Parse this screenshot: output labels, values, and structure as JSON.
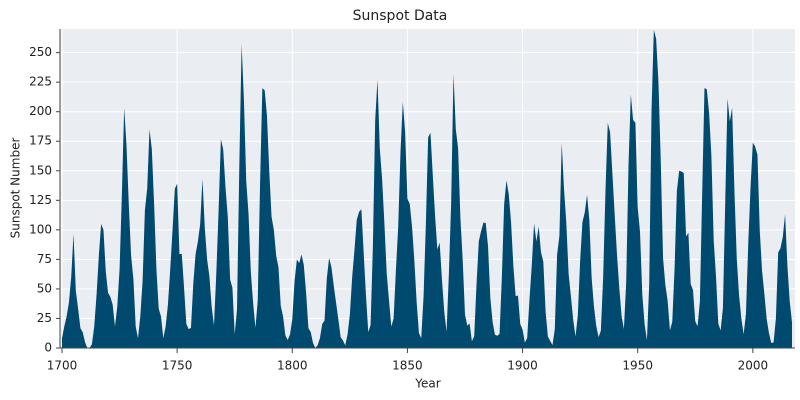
{
  "chart_data": {
    "type": "area",
    "title": "Sunspot Data",
    "x_label": "Year",
    "y_label": "Sunspot Number",
    "color": "#004a6f",
    "grid": true,
    "xlim": [
      1700,
      2017
    ],
    "ylim": [
      0,
      270
    ],
    "xticks": [
      1700,
      1750,
      1800,
      1850,
      1900,
      1950,
      2000
    ],
    "yticks": [
      0,
      25,
      50,
      75,
      100,
      125,
      150,
      175,
      200,
      225,
      250
    ],
    "x": [
      1700,
      1701,
      1702,
      1703,
      1704,
      1705,
      1706,
      1707,
      1708,
      1709,
      1710,
      1711,
      1712,
      1713,
      1714,
      1715,
      1716,
      1717,
      1718,
      1719,
      1720,
      1721,
      1722,
      1723,
      1724,
      1725,
      1726,
      1727,
      1728,
      1729,
      1730,
      1731,
      1732,
      1733,
      1734,
      1735,
      1736,
      1737,
      1738,
      1739,
      1740,
      1741,
      1742,
      1743,
      1744,
      1745,
      1746,
      1747,
      1748,
      1749,
      1750,
      1751,
      1752,
      1753,
      1754,
      1755,
      1756,
      1757,
      1758,
      1759,
      1760,
      1761,
      1762,
      1763,
      1764,
      1765,
      1766,
      1767,
      1768,
      1769,
      1770,
      1771,
      1772,
      1773,
      1774,
      1775,
      1776,
      1777,
      1778,
      1779,
      1780,
      1781,
      1782,
      1783,
      1784,
      1785,
      1786,
      1787,
      1788,
      1789,
      1790,
      1791,
      1792,
      1793,
      1794,
      1795,
      1796,
      1797,
      1798,
      1799,
      1800,
      1801,
      1802,
      1803,
      1804,
      1805,
      1806,
      1807,
      1808,
      1809,
      1810,
      1811,
      1812,
      1813,
      1814,
      1815,
      1816,
      1817,
      1818,
      1819,
      1820,
      1821,
      1822,
      1823,
      1824,
      1825,
      1826,
      1827,
      1828,
      1829,
      1830,
      1831,
      1832,
      1833,
      1834,
      1835,
      1836,
      1837,
      1838,
      1839,
      1840,
      1841,
      1842,
      1843,
      1844,
      1845,
      1846,
      1847,
      1848,
      1849,
      1850,
      1851,
      1852,
      1853,
      1854,
      1855,
      1856,
      1857,
      1858,
      1859,
      1860,
      1861,
      1862,
      1863,
      1864,
      1865,
      1866,
      1867,
      1868,
      1869,
      1870,
      1871,
      1872,
      1873,
      1874,
      1875,
      1876,
      1877,
      1878,
      1879,
      1880,
      1881,
      1882,
      1883,
      1884,
      1885,
      1886,
      1887,
      1888,
      1889,
      1890,
      1891,
      1892,
      1893,
      1894,
      1895,
      1896,
      1897,
      1898,
      1899,
      1900,
      1901,
      1902,
      1903,
      1904,
      1905,
      1906,
      1907,
      1908,
      1909,
      1910,
      1911,
      1912,
      1913,
      1914,
      1915,
      1916,
      1917,
      1918,
      1919,
      1920,
      1921,
      1922,
      1923,
      1924,
      1925,
      1926,
      1927,
      1928,
      1929,
      1930,
      1931,
      1932,
      1933,
      1934,
      1935,
      1936,
      1937,
      1938,
      1939,
      1940,
      1941,
      1942,
      1943,
      1944,
      1945,
      1946,
      1947,
      1948,
      1949,
      1950,
      1951,
      1952,
      1953,
      1954,
      1955,
      1956,
      1957,
      1958,
      1959,
      1960,
      1961,
      1962,
      1963,
      1964,
      1965,
      1966,
      1967,
      1968,
      1969,
      1970,
      1971,
      1972,
      1973,
      1974,
      1975,
      1976,
      1977,
      1978,
      1979,
      1980,
      1981,
      1982,
      1983,
      1984,
      1985,
      1986,
      1987,
      1988,
      1989,
      1990,
      1991,
      1992,
      1993,
      1994,
      1995,
      1996,
      1997,
      1998,
      1999,
      2000,
      2001,
      2002,
      2003,
      2004,
      2005,
      2006,
      2007,
      2008,
      2009,
      2010,
      2011,
      2012,
      2013,
      2014,
      2015,
      2016,
      2017
    ],
    "values": [
      8.3,
      18.3,
      26.7,
      38.3,
      60.0,
      96.7,
      48.3,
      33.3,
      16.7,
      13.3,
      5.0,
      0.0,
      0.0,
      3.3,
      18.3,
      45.0,
      78.3,
      105.0,
      100.0,
      65.0,
      46.7,
      43.3,
      36.7,
      18.3,
      35.0,
      66.7,
      130.0,
      203.3,
      171.7,
      121.7,
      78.3,
      58.3,
      18.3,
      8.3,
      26.7,
      56.7,
      116.7,
      135.0,
      185.0,
      168.3,
      121.7,
      66.7,
      33.3,
      26.7,
      8.3,
      18.3,
      36.7,
      66.7,
      100.0,
      134.8,
      139.0,
      79.5,
      79.7,
      51.2,
      20.3,
      16.0,
      17.0,
      54.0,
      79.3,
      90.0,
      104.8,
      143.2,
      102.0,
      75.2,
      60.7,
      34.8,
      19.0,
      63.0,
      116.3,
      176.8,
      168.0,
      136.0,
      110.8,
      58.0,
      51.0,
      11.7,
      33.0,
      154.2,
      257.3,
      209.8,
      141.3,
      113.5,
      64.2,
      38.0,
      17.0,
      40.2,
      138.2,
      220.0,
      218.2,
      196.8,
      149.8,
      111.0,
      100.0,
      78.2,
      68.3,
      35.5,
      26.7,
      10.7,
      6.8,
      11.3,
      24.2,
      56.7,
      75.0,
      71.8,
      79.2,
      70.3,
      46.8,
      16.8,
      13.5,
      4.2,
      0.0,
      2.3,
      8.3,
      20.3,
      23.2,
      59.0,
      76.3,
      68.3,
      52.9,
      38.5,
      24.2,
      9.2,
      6.3,
      2.2,
      11.4,
      28.2,
      59.9,
      83.0,
      108.5,
      115.2,
      117.4,
      80.8,
      44.3,
      13.4,
      19.5,
      85.8,
      192.7,
      227.3,
      168.7,
      143.0,
      105.5,
      63.3,
      40.3,
      18.1,
      25.1,
      65.8,
      102.7,
      166.3,
      208.3,
      182.5,
      126.3,
      122.0,
      102.7,
      74.1,
      39.0,
      12.7,
      8.2,
      43.4,
      104.4,
      178.3,
      182.2,
      146.6,
      112.1,
      83.5,
      89.2,
      57.8,
      30.7,
      13.9,
      62.8,
      123.6,
      232.0,
      185.3,
      169.2,
      110.1,
      74.5,
      28.3,
      18.9,
      20.7,
      5.7,
      10.0,
      53.7,
      90.5,
      99.0,
      106.1,
      105.8,
      86.3,
      42.4,
      21.8,
      11.2,
      10.4,
      11.8,
      59.5,
      121.7,
      142.0,
      130.0,
      106.6,
      69.4,
      43.8,
      44.4,
      20.2,
      15.7,
      4.6,
      8.5,
      40.8,
      70.1,
      105.5,
      90.1,
      102.8,
      80.9,
      73.2,
      30.9,
      9.5,
      6.0,
      2.4,
      16.1,
      79.0,
      95.0,
      173.6,
      134.6,
      105.7,
      62.7,
      43.5,
      23.7,
      9.7,
      27.9,
      74.0,
      106.5,
      114.7,
      129.7,
      108.2,
      59.4,
      35.1,
      18.6,
      9.2,
      14.6,
      60.2,
      132.8,
      190.6,
      182.6,
      148.0,
      113.0,
      79.2,
      50.8,
      27.1,
      16.1,
      55.3,
      154.3,
      214.7,
      193.0,
      190.7,
      118.9,
      98.3,
      45.0,
      20.1,
      6.6,
      54.2,
      200.7,
      269.3,
      261.7,
      225.1,
      159.0,
      76.4,
      53.4,
      39.9,
      15.0,
      22.0,
      66.8,
      132.9,
      150.0,
      149.4,
      148.0,
      94.4,
      97.6,
      54.1,
      49.2,
      22.5,
      18.4,
      39.3,
      131.0,
      220.1,
      218.9,
      198.9,
      162.4,
      91.0,
      60.5,
      20.6,
      14.8,
      33.9,
      123.0,
      211.1,
      191.8,
      203.3,
      133.0,
      76.1,
      44.9,
      25.1,
      11.6,
      28.9,
      88.3,
      136.3,
      173.9,
      170.4,
      163.6,
      99.3,
      65.3,
      45.8,
      24.7,
      12.6,
      4.2,
      4.8,
      24.9,
      80.8,
      84.5,
      94.0,
      113.3,
      69.8,
      39.8,
      21.7
    ]
  }
}
